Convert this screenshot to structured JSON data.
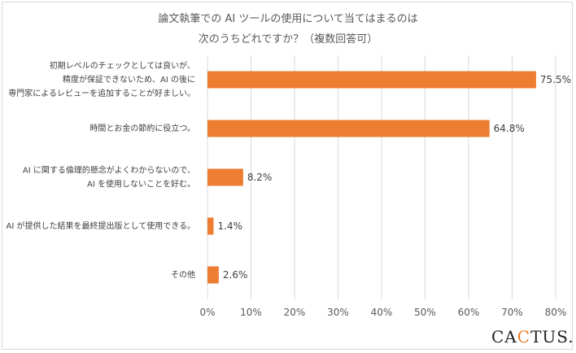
{
  "chart_data": {
    "type": "bar",
    "orientation": "horizontal",
    "title": [
      "論文執筆での AI ツールの使用について当てはまるのは",
      "次のうちどれですか？（複数回答可）"
    ],
    "categories": [
      [
        "初期レベルのチェックとしては良いが、",
        "精度が保証できないため、AI の後に",
        "専門家によるレビューを追加することが好ましい。"
      ],
      [
        "時間とお金の節約に役立つ。"
      ],
      [
        "AI に関する倫理的懸念がよくわからないので、",
        "AI を使用しないことを好む。"
      ],
      [
        "AI が提供した結果を最終提出版として使用できる。"
      ],
      [
        "その他"
      ]
    ],
    "values": [
      75.5,
      64.8,
      8.2,
      1.4,
      2.6
    ],
    "value_labels": [
      "75.5%",
      "64.8%",
      "8.2%",
      "1.4%",
      "2.6%"
    ],
    "xlim": [
      0,
      80
    ],
    "x_ticks": [
      "0%",
      "10%",
      "20%",
      "30%",
      "40%",
      "50%",
      "60%",
      "70%",
      "80%"
    ],
    "grid": "vertical",
    "bar_color": "#ED7D31",
    "grid_color": "#D9D9D9"
  },
  "logo": {
    "text_before": "CA",
    "text_accent": "C",
    "text_after": "TUS."
  }
}
